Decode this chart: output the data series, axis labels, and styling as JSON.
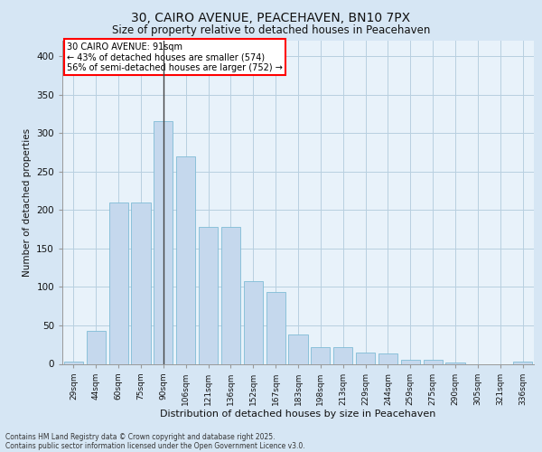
{
  "title_line1": "30, CAIRO AVENUE, PEACEHAVEN, BN10 7PX",
  "title_line2": "Size of property relative to detached houses in Peacehaven",
  "xlabel": "Distribution of detached houses by size in Peacehaven",
  "ylabel": "Number of detached properties",
  "categories": [
    "29sqm",
    "44sqm",
    "60sqm",
    "75sqm",
    "90sqm",
    "106sqm",
    "121sqm",
    "136sqm",
    "152sqm",
    "167sqm",
    "183sqm",
    "198sqm",
    "213sqm",
    "229sqm",
    "244sqm",
    "259sqm",
    "275sqm",
    "290sqm",
    "305sqm",
    "321sqm",
    "336sqm"
  ],
  "values": [
    3,
    43,
    210,
    210,
    315,
    270,
    178,
    178,
    108,
    93,
    38,
    22,
    22,
    15,
    13,
    5,
    5,
    2,
    0,
    0,
    3
  ],
  "bar_color": "#c5d8ed",
  "bar_edge_color": "#7fbcd6",
  "highlight_index": 4,
  "highlight_line_color": "#444444",
  "annotation_text": "30 CAIRO AVENUE: 91sqm\n← 43% of detached houses are smaller (574)\n56% of semi-detached houses are larger (752) →",
  "annotation_box_color": "white",
  "annotation_box_edge_color": "red",
  "grid_color": "#b8cfe0",
  "background_color": "#d6e6f4",
  "plot_bg_color": "#e8f2fa",
  "footer_line1": "Contains HM Land Registry data © Crown copyright and database right 2025.",
  "footer_line2": "Contains public sector information licensed under the Open Government Licence v3.0.",
  "ylim": [
    0,
    420
  ],
  "yticks": [
    0,
    50,
    100,
    150,
    200,
    250,
    300,
    350,
    400
  ]
}
